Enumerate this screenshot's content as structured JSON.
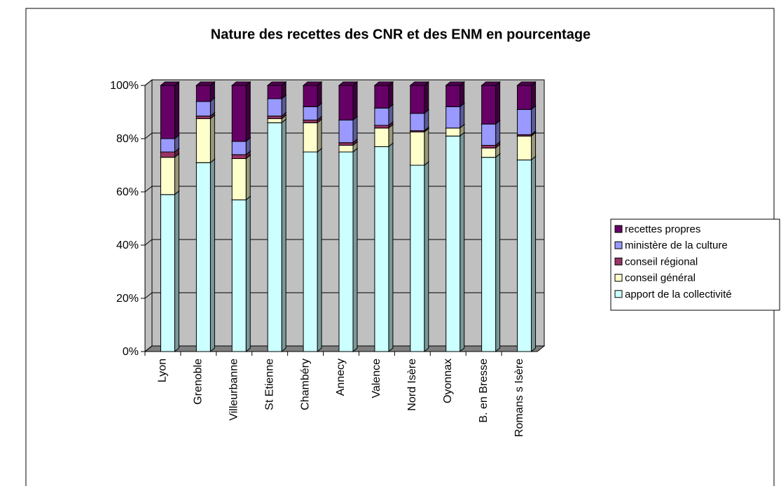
{
  "chart_data": {
    "type": "bar3d_stacked_percent",
    "title": "Nature des recettes des CNR et des ENM en pourcentage",
    "categories": [
      "Lyon",
      "Grenoble",
      "Villeurbanne",
      "St Etienne",
      "Chambéry",
      "Annecy",
      "Valence",
      "Nord Isère",
      "Oyonnax",
      "B. en Bresse",
      "Romans s Isère"
    ],
    "series": [
      {
        "name": "apport de la collectivité",
        "color": "#ccffff",
        "values": [
          59,
          71,
          57,
          86,
          75,
          75,
          77,
          70,
          81,
          73,
          72
        ]
      },
      {
        "name": "conseil général",
        "color": "#ffffcc",
        "values": [
          14,
          16.5,
          15.5,
          1.5,
          11,
          2.5,
          7,
          12.5,
          3,
          3.5,
          9
        ]
      },
      {
        "name": "conseil régional",
        "color": "#993366",
        "values": [
          2,
          1,
          1.5,
          1,
          1,
          1,
          1,
          0.5,
          0,
          1,
          0.5
        ]
      },
      {
        "name": "ministère de la culture",
        "color": "#9999ff",
        "values": [
          5,
          5.5,
          5,
          6.5,
          5,
          8.5,
          6.5,
          6.5,
          8,
          8,
          9.5
        ]
      },
      {
        "name": "recettes propres",
        "color": "#660066",
        "values": [
          20,
          6,
          21,
          5,
          8,
          13,
          8.5,
          10.5,
          8,
          14.5,
          9
        ]
      }
    ],
    "ylim": [
      0,
      100
    ],
    "yticks": [
      {
        "value": 0,
        "label": "0%"
      },
      {
        "value": 20,
        "label": "20%"
      },
      {
        "value": 40,
        "label": "40%"
      },
      {
        "value": 60,
        "label": "60%"
      },
      {
        "value": 80,
        "label": "80%"
      },
      {
        "value": 100,
        "label": "100%"
      }
    ],
    "grid": true,
    "legend": "right"
  }
}
